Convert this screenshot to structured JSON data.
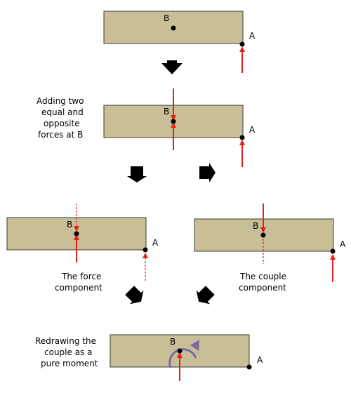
{
  "labels": {
    "point_b": "B",
    "point_a": "A"
  },
  "captions": {
    "adding_forces": [
      "Adding two",
      "equal and",
      "opposite",
      "forces at B"
    ],
    "force_component": [
      "The force",
      "component"
    ],
    "couple_component": [
      "The couple",
      "component"
    ],
    "redraw_couple": [
      "Redrawing the",
      "couple as a",
      "pure moment"
    ]
  },
  "colors": {
    "beam_fill": "#c8bf96",
    "beam_stroke": "#3a3a3a",
    "force": "#e8201c",
    "moment": "#7b6aa6",
    "step_arrow": "#000000"
  }
}
